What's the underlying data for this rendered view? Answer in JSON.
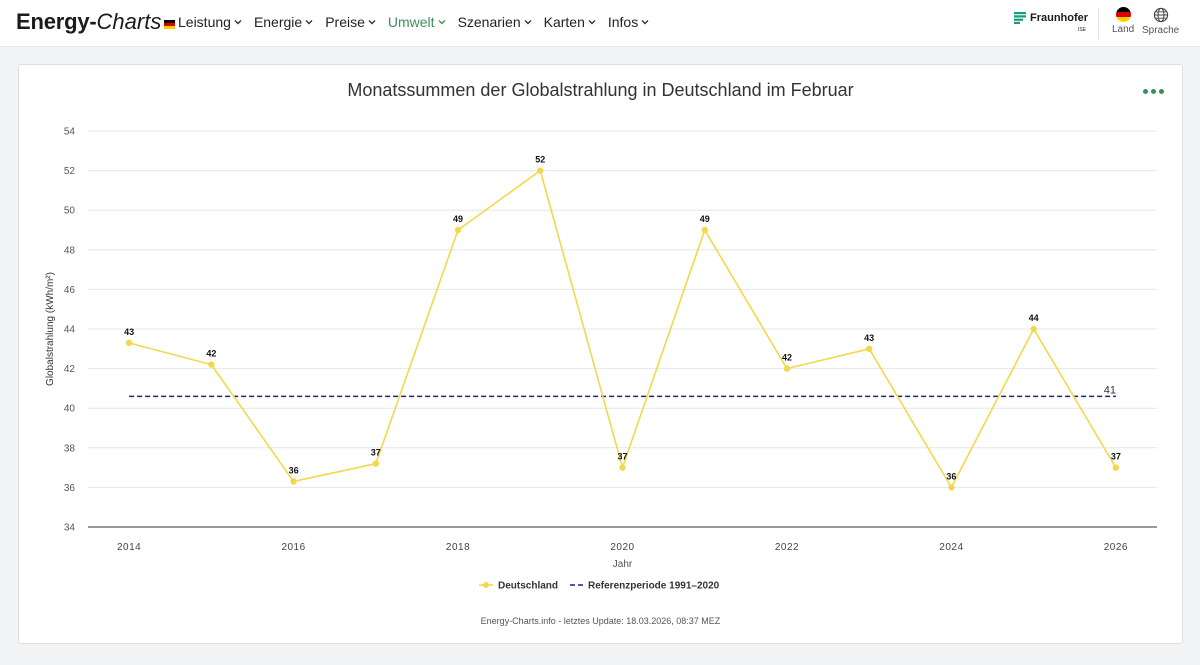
{
  "header": {
    "logo_strong": "Energy-",
    "logo_italic": "Charts",
    "nav": [
      {
        "label": "Leistung",
        "active": false
      },
      {
        "label": "Energie",
        "active": false
      },
      {
        "label": "Preise",
        "active": false
      },
      {
        "label": "Umwelt",
        "active": true
      },
      {
        "label": "Szenarien",
        "active": false
      },
      {
        "label": "Karten",
        "active": false
      },
      {
        "label": "Infos",
        "active": false
      }
    ],
    "partner": "Fraunhofer",
    "partner_sub": "ISE",
    "land_label": "Land",
    "lang_label": "Sprache"
  },
  "colors": {
    "accent": "#3b8f5a",
    "series_de": "#f3d84b",
    "reference": "#1f1f7a"
  },
  "footer": "Energy-Charts.info - letztes Update: 18.03.2026, 08:37 MEZ",
  "chart_data": {
    "type": "line",
    "title": "Monatssummen der Globalstrahlung in Deutschland im Februar",
    "xlabel": "Jahr",
    "ylabel": "Globalstrahlung (kWh/m²)",
    "xlim": [
      2013.5,
      2026.5
    ],
    "ylim": [
      34,
      54
    ],
    "x_ticks": [
      2014,
      2016,
      2018,
      2020,
      2022,
      2024,
      2026
    ],
    "y_ticks": [
      34,
      36,
      38,
      40,
      42,
      44,
      46,
      48,
      50,
      52,
      54
    ],
    "grid": true,
    "legend_position": "bottom-center",
    "series": [
      {
        "name": "Deutschland",
        "x": [
          2014,
          2015,
          2016,
          2017,
          2018,
          2019,
          2020,
          2021,
          2022,
          2023,
          2024,
          2025,
          2026
        ],
        "values": [
          43.3,
          42.2,
          36.3,
          37.2,
          49.0,
          52.0,
          37.0,
          49.0,
          42.0,
          43.0,
          36.0,
          44.0,
          37.0
        ],
        "labels": [
          "43",
          "42",
          "36",
          "37",
          "49",
          "52",
          "37",
          "49",
          "42",
          "43",
          "36",
          "44",
          "37"
        ]
      }
    ],
    "reference_line": {
      "name": "Referenzperiode 1991–2020",
      "value": 40.6,
      "x_range": [
        2014,
        2026
      ],
      "label": "41"
    }
  }
}
